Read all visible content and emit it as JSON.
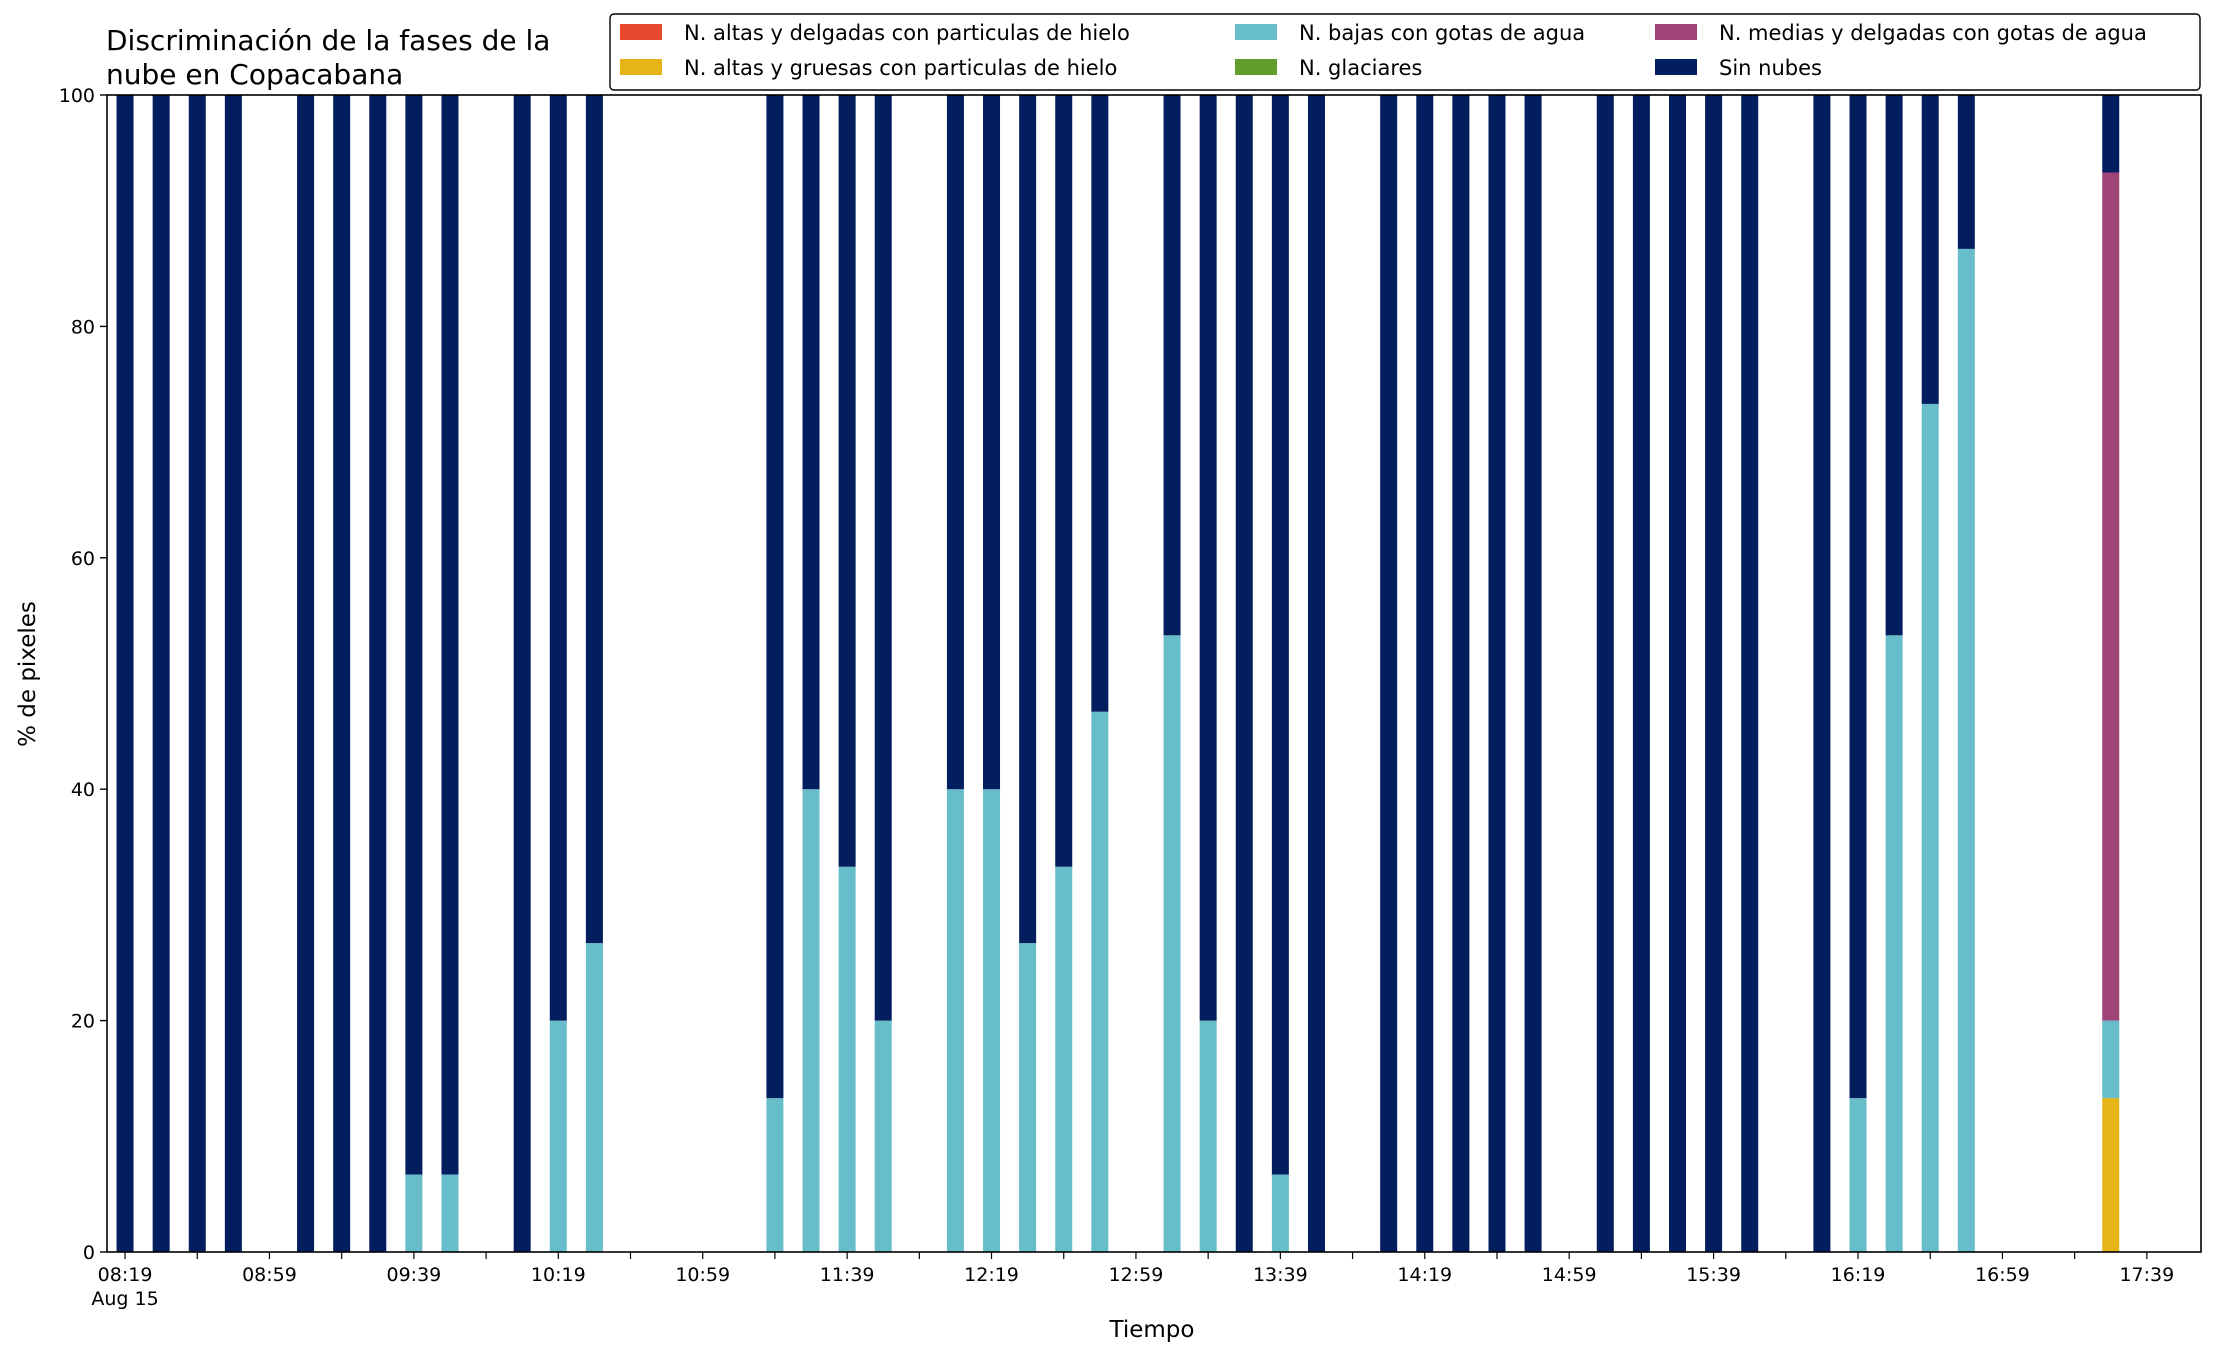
{
  "chart_data": {
    "type": "bar",
    "stacked": true,
    "title_lines": [
      "Discriminación de la fases de la",
      "nube en Copacabana"
    ],
    "xlabel": "Tiempo",
    "ylabel": "% de pixeles",
    "ylim": [
      0,
      100
    ],
    "yticks": [
      0,
      20,
      40,
      60,
      80,
      100
    ],
    "grid": false,
    "legend_position": "top-right",
    "x_range": [
      "08:14",
      "17:54"
    ],
    "tick_labels": [
      {
        "time": "08:19",
        "label": "08:19",
        "sublabel": "Aug 15"
      },
      {
        "time": "08:59",
        "label": "08:59"
      },
      {
        "time": "09:39",
        "label": "09:39"
      },
      {
        "time": "10:19",
        "label": "10:19"
      },
      {
        "time": "10:59",
        "label": "10:59"
      },
      {
        "time": "11:39",
        "label": "11:39"
      },
      {
        "time": "12:19",
        "label": "12:19"
      },
      {
        "time": "12:59",
        "label": "12:59"
      },
      {
        "time": "13:39",
        "label": "13:39"
      },
      {
        "time": "14:19",
        "label": "14:19"
      },
      {
        "time": "14:59",
        "label": "14:59"
      },
      {
        "time": "15:39",
        "label": "15:39"
      },
      {
        "time": "16:19",
        "label": "16:19"
      },
      {
        "time": "16:59",
        "label": "16:59"
      },
      {
        "time": "17:39",
        "label": "17:39"
      }
    ],
    "series": [
      {
        "name": "N. altas y delgadas con particulas de hielo",
        "color": "#e8482d"
      },
      {
        "name": "N. altas y gruesas con particulas de hielo",
        "color": "#e6b416"
      },
      {
        "name": "N. bajas con gotas de agua",
        "color": "#67bdc9"
      },
      {
        "name": "N. glaciares",
        "color": "#5f9e2d"
      },
      {
        "name": "N. medias y delgadas con gotas de agua",
        "color": "#a04478"
      },
      {
        "name": "Sin nubes",
        "color": "#031e5e"
      }
    ],
    "x": [
      "08:19",
      "08:29",
      "08:39",
      "08:49",
      "09:09",
      "09:19",
      "09:29",
      "09:39",
      "09:49",
      "10:09",
      "10:19",
      "10:29",
      "11:19",
      "11:29",
      "11:39",
      "11:49",
      "12:09",
      "12:19",
      "12:29",
      "12:39",
      "12:49",
      "13:09",
      "13:19",
      "13:29",
      "13:39",
      "13:49",
      "14:09",
      "14:19",
      "14:29",
      "14:39",
      "14:49",
      "15:09",
      "15:19",
      "15:29",
      "15:39",
      "15:49",
      "16:09",
      "16:19",
      "16:29",
      "16:39",
      "16:49",
      "17:29"
    ],
    "values": [
      [
        0,
        0,
        0,
        0,
        0,
        100
      ],
      [
        0,
        0,
        0,
        0,
        0,
        100
      ],
      [
        0,
        0,
        0,
        0,
        0,
        100
      ],
      [
        0,
        0,
        0,
        0,
        0,
        100
      ],
      [
        0,
        0,
        0,
        0,
        0,
        100
      ],
      [
        0,
        0,
        0,
        0,
        0,
        100
      ],
      [
        0,
        0,
        0,
        0,
        0,
        100
      ],
      [
        0,
        0,
        6.7,
        0,
        0,
        93.3
      ],
      [
        0,
        0,
        6.7,
        0,
        0,
        93.3
      ],
      [
        0,
        0,
        0,
        0,
        0,
        100
      ],
      [
        0,
        0,
        20,
        0,
        0,
        80
      ],
      [
        0,
        0,
        26.7,
        0,
        0,
        73.3
      ],
      [
        0,
        0,
        13.3,
        0,
        0,
        86.7
      ],
      [
        0,
        0,
        40,
        0,
        0,
        60
      ],
      [
        0,
        0,
        33.3,
        0,
        0,
        66.7
      ],
      [
        0,
        0,
        20,
        0,
        0,
        80
      ],
      [
        0,
        0,
        40,
        0,
        0,
        60
      ],
      [
        0,
        0,
        40,
        0,
        0,
        60
      ],
      [
        0,
        0,
        26.7,
        0,
        0,
        73.3
      ],
      [
        0,
        0,
        33.3,
        0,
        0,
        66.7
      ],
      [
        0,
        0,
        46.7,
        0,
        0,
        53.3
      ],
      [
        0,
        0,
        53.3,
        0,
        0,
        46.7
      ],
      [
        0,
        0,
        20,
        0,
        0,
        80
      ],
      [
        0,
        0,
        0,
        0,
        0,
        100
      ],
      [
        0,
        0,
        6.7,
        0,
        0,
        93.3
      ],
      [
        0,
        0,
        0,
        0,
        0,
        100
      ],
      [
        0,
        0,
        0,
        0,
        0,
        100
      ],
      [
        0,
        0,
        0,
        0,
        0,
        100
      ],
      [
        0,
        0,
        0,
        0,
        0,
        100
      ],
      [
        0,
        0,
        0,
        0,
        0,
        100
      ],
      [
        0,
        0,
        0,
        0,
        0,
        100
      ],
      [
        0,
        0,
        0,
        0,
        0,
        100
      ],
      [
        0,
        0,
        0,
        0,
        0,
        100
      ],
      [
        0,
        0,
        0,
        0,
        0,
        100
      ],
      [
        0,
        0,
        0,
        0,
        0,
        100
      ],
      [
        0,
        0,
        0,
        0,
        0,
        100
      ],
      [
        0,
        0,
        0,
        0,
        0,
        100
      ],
      [
        0,
        0,
        13.3,
        0,
        0,
        86.7
      ],
      [
        0,
        0,
        53.3,
        0,
        0,
        46.7
      ],
      [
        0,
        0,
        73.3,
        0,
        0,
        26.7
      ],
      [
        0,
        0,
        86.7,
        0,
        0,
        13.3
      ],
      [
        0,
        13.3,
        6.7,
        0,
        73.3,
        6.7
      ]
    ]
  }
}
